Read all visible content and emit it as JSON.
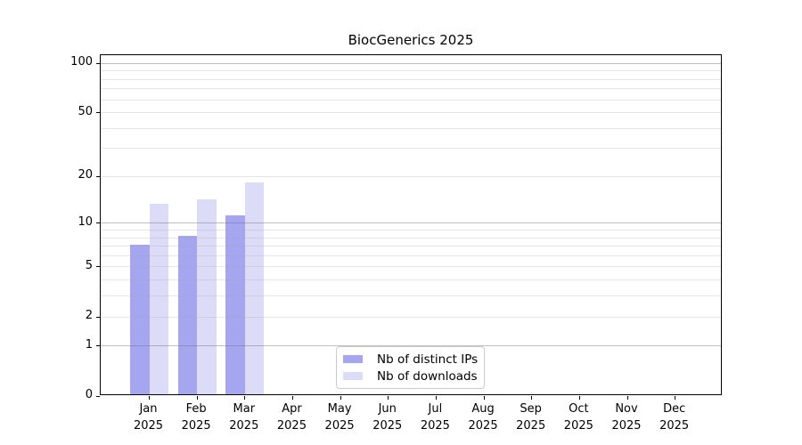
{
  "chart_data": {
    "type": "bar",
    "title": "BiocGenerics 2025",
    "categories": [
      "Jan",
      "Feb",
      "Mar",
      "Apr",
      "May",
      "Jun",
      "Jul",
      "Aug",
      "Sep",
      "Oct",
      "Nov",
      "Dec"
    ],
    "category_year": "2025",
    "series": [
      {
        "name": "Nb of distinct IPs",
        "color": "#a6a6f0",
        "values": [
          7,
          8,
          11,
          0,
          0,
          0,
          0,
          0,
          0,
          0,
          0,
          0
        ]
      },
      {
        "name": "Nb of downloads",
        "color": "#dcdcf8",
        "values": [
          13,
          14,
          18,
          0,
          0,
          0,
          0,
          0,
          0,
          0,
          0,
          0
        ]
      }
    ],
    "yscale": "log1p",
    "ylim": [
      0,
      100
    ],
    "yticks_labeled": [
      0,
      1,
      2,
      5,
      10,
      20,
      50,
      100
    ],
    "yticks_decade": [
      1,
      10,
      100
    ],
    "yticks_minor": [
      3,
      4,
      6,
      7,
      8,
      9,
      30,
      40,
      60,
      70,
      80,
      90
    ],
    "grid": true,
    "legend_position": "lower center"
  },
  "colors": {
    "grid_major": "#6e6e6e",
    "grid_minor": "#a5a5a5",
    "spine": "#000000",
    "background": "#ffffff"
  }
}
